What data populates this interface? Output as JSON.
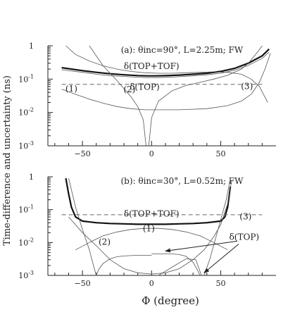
{
  "figure": {
    "shared_ylabel": "Time-difference and uncertainty (ns)",
    "shared_xlabel": "Φ (degree)"
  },
  "chart_data": [
    {
      "type": "line",
      "panel_label": "(a): θinc=90°, L=2.25m; FW",
      "xlim": [
        -75,
        90
      ],
      "ylim": [
        0.001,
        1
      ],
      "yscale": "log",
      "x_ticks": [
        -50,
        0,
        50
      ],
      "y_ticks": [
        "10-3",
        "10-2",
        "10-1",
        "1"
      ],
      "annotations": [
        {
          "text": "δ(TOP+TOF)",
          "x": 0,
          "y": 0.2
        },
        {
          "text": "δ(TOP)",
          "x": -5,
          "y": 0.048
        },
        {
          "text": "(1)",
          "x": -58,
          "y": 0.042
        },
        {
          "text": "(2)",
          "x": -16,
          "y": 0.04
        },
        {
          "text": "(3)",
          "x": 69,
          "y": 0.05
        }
      ],
      "series": [
        {
          "id": "top-tof",
          "style": "thick",
          "x": [
            -65,
            -50,
            -40,
            -30,
            -20,
            -10,
            -3,
            3,
            10,
            20,
            30,
            40,
            50,
            60,
            70,
            80,
            85
          ],
          "y": [
            0.22,
            0.18,
            0.16,
            0.145,
            0.135,
            0.128,
            0.125,
            0.125,
            0.127,
            0.132,
            0.14,
            0.15,
            0.17,
            0.21,
            0.3,
            0.5,
            0.8
          ]
        },
        {
          "id": "top-tof-thin",
          "style": "thin",
          "x": [
            -65,
            -50,
            -40,
            -30,
            -20,
            -10,
            -3,
            3,
            10,
            20,
            30,
            40,
            50,
            60,
            70,
            80,
            85
          ],
          "y": [
            0.19,
            0.16,
            0.14,
            0.128,
            0.12,
            0.114,
            0.111,
            0.111,
            0.113,
            0.118,
            0.125,
            0.135,
            0.15,
            0.185,
            0.26,
            0.42,
            0.65
          ]
        },
        {
          "id": "delta-top",
          "style": "dashed",
          "x": [
            -65,
            80
          ],
          "y": [
            0.07,
            0.07
          ]
        },
        {
          "id": "curve-1",
          "style": "thin",
          "x": [
            -65,
            -55,
            -45,
            -35,
            -25,
            -15,
            -5,
            5,
            20,
            40,
            55,
            65,
            72,
            78,
            82,
            86
          ],
          "y": [
            0.05,
            0.035,
            0.025,
            0.019,
            0.015,
            0.013,
            0.012,
            0.012,
            0.012,
            0.013,
            0.016,
            0.022,
            0.035,
            0.08,
            0.2,
            0.6
          ]
        },
        {
          "id": "curve-2-left",
          "style": "thin",
          "x": [
            -45,
            -35,
            -25,
            -15,
            -10,
            -6,
            -4
          ],
          "y": [
            1.0,
            0.25,
            0.09,
            0.03,
            0.015,
            0.006,
            0.001
          ]
        },
        {
          "id": "curve-2-right",
          "style": "thin",
          "x": [
            -2,
            0,
            5,
            15,
            25,
            35,
            45,
            55,
            65,
            70,
            76,
            80
          ],
          "y": [
            0.001,
            0.007,
            0.022,
            0.045,
            0.065,
            0.08,
            0.1,
            0.13,
            0.2,
            0.3,
            0.6,
            1.0
          ]
        },
        {
          "id": "curve-3",
          "style": "thin",
          "x": [
            -62,
            -55,
            -45,
            -35,
            -25,
            -15,
            -5,
            5,
            15,
            25,
            35,
            45,
            55,
            65,
            72,
            78,
            84
          ],
          "y": [
            1.0,
            0.55,
            0.35,
            0.25,
            0.2,
            0.17,
            0.155,
            0.15,
            0.15,
            0.155,
            0.16,
            0.165,
            0.16,
            0.14,
            0.1,
            0.06,
            0.02
          ]
        }
      ]
    },
    {
      "type": "line",
      "panel_label": "(b): θinc=30°, L=0.52m; FW",
      "xlim": [
        -75,
        90
      ],
      "ylim": [
        0.001,
        1
      ],
      "yscale": "log",
      "x_ticks": [
        -50,
        0,
        50
      ],
      "y_ticks": [
        "10-3",
        "10-2",
        "10-1",
        "1"
      ],
      "annotations": [
        {
          "text": "δ(TOP+TOF)",
          "x": 0,
          "y": 0.062
        },
        {
          "text": "(1)",
          "x": -2,
          "y": 0.022
        },
        {
          "text": "(2)",
          "x": -34,
          "y": 0.0085
        },
        {
          "text": "(3)",
          "x": 68,
          "y": 0.05
        },
        {
          "text": "δ(TOP)",
          "x": 67,
          "y": 0.012
        }
      ],
      "series": [
        {
          "id": "top-tof",
          "style": "thick",
          "x": [
            -62,
            -60,
            -58,
            -55,
            -50,
            -40,
            -30,
            -20,
            -10,
            0,
            10,
            20,
            30,
            40,
            50,
            53,
            55,
            57
          ],
          "y": [
            0.9,
            0.3,
            0.12,
            0.06,
            0.045,
            0.04,
            0.038,
            0.037,
            0.036,
            0.036,
            0.036,
            0.037,
            0.038,
            0.04,
            0.045,
            0.06,
            0.12,
            0.5
          ]
        },
        {
          "id": "delta-top",
          "style": "dashed",
          "x": [
            -65,
            80
          ],
          "y": [
            0.07,
            0.07
          ]
        },
        {
          "id": "curve-1",
          "style": "thin",
          "x": [
            -55,
            -45,
            -35,
            -25,
            -15,
            -5,
            5,
            15,
            25,
            35,
            45,
            55
          ],
          "y": [
            0.006,
            0.01,
            0.016,
            0.021,
            0.025,
            0.027,
            0.027,
            0.025,
            0.021,
            0.016,
            0.01,
            0.006
          ]
        },
        {
          "id": "curve-2-left",
          "style": "thin",
          "x": [
            -60,
            -55,
            -50,
            -45,
            -42,
            -40
          ],
          "y": [
            0.9,
            0.12,
            0.025,
            0.006,
            0.002,
            0.001
          ]
        },
        {
          "id": "curve-2-right",
          "style": "thin",
          "x": [
            -40,
            -38,
            -35,
            -30,
            -25,
            -20,
            -15,
            -10,
            -5,
            0
          ],
          "y": [
            0.001,
            0.0016,
            0.0023,
            0.0032,
            0.0037,
            0.0039,
            0.004,
            0.0041,
            0.0041,
            0.0041
          ]
        },
        {
          "id": "curve-2b",
          "style": "thin",
          "x": [
            0,
            5,
            10,
            15,
            20,
            25,
            30,
            33,
            35
          ],
          "y": [
            0.0045,
            0.0045,
            0.0046,
            0.0045,
            0.0043,
            0.0038,
            0.0025,
            0.0015,
            0.001
          ]
        },
        {
          "id": "curve-3",
          "style": "thin",
          "x": [
            -60,
            -50,
            -40,
            -30,
            -20,
            -10,
            0,
            10,
            20,
            30,
            38,
            45,
            50,
            55,
            58
          ],
          "y": [
            0.06,
            0.02,
            0.008,
            0.003,
            0.0016,
            0.0012,
            0.0011,
            0.0012,
            0.0016,
            0.003,
            0.006,
            0.015,
            0.035,
            0.15,
            0.8
          ]
        },
        {
          "id": "curve-4",
          "style": "thin",
          "x": [
            5,
            15,
            25,
            32,
            36
          ],
          "y": [
            0.001,
            0.0018,
            0.0032,
            0.003,
            0.001
          ]
        },
        {
          "id": "curve-5",
          "style": "thin",
          "x": [
            38,
            42,
            46,
            50,
            54,
            57
          ],
          "y": [
            0.001,
            0.003,
            0.012,
            0.05,
            0.2,
            0.9
          ]
        }
      ],
      "arrows": [
        {
          "from": [
            62,
            0.011
          ],
          "to": [
            10,
            0.0055
          ]
        },
        {
          "from": [
            63,
            0.009
          ],
          "to": [
            38,
            0.0012
          ]
        }
      ]
    }
  ]
}
